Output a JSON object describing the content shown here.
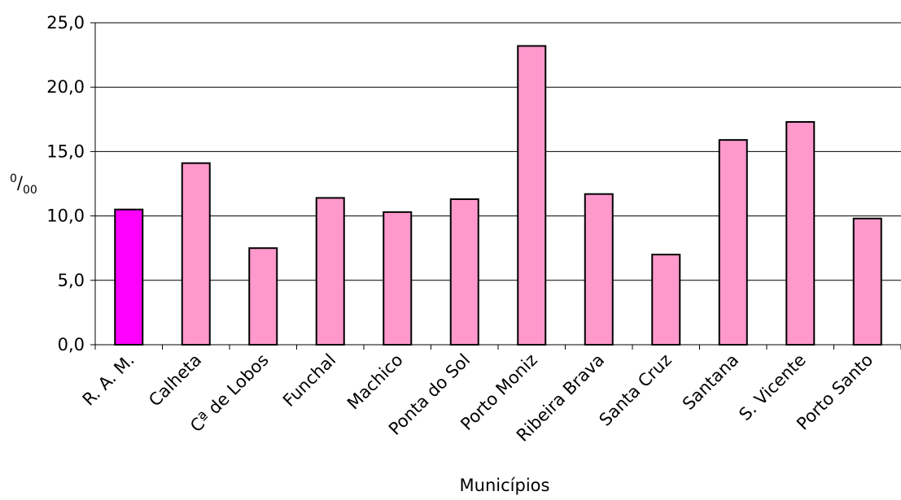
{
  "chart_data": {
    "type": "bar",
    "title": "",
    "xlabel": "Municípios",
    "ylabel": {
      "sup": "0",
      "sep": "/",
      "sub": "00"
    },
    "ylim": [
      0,
      25
    ],
    "yticks": [
      "0,0",
      "5,0",
      "10,0",
      "15,0",
      "20,0",
      "25,0"
    ],
    "grid": true,
    "categories": [
      "R. A. M.",
      "Calheta",
      "Cª de Lobos",
      "Funchal",
      "Machico",
      "Ponta do Sol",
      "Porto Moniz",
      "Ribeira Brava",
      "Santa Cruz",
      "Santana",
      "S. Vicente",
      "Porto Santo"
    ],
    "values": [
      10.5,
      14.1,
      7.5,
      11.4,
      10.3,
      11.3,
      23.2,
      11.7,
      7.0,
      15.9,
      17.3,
      9.8
    ],
    "colors": {
      "highlight": "#ff00ff",
      "bar": "#ff99cc",
      "outline": "#000000",
      "grid": "#000000"
    },
    "highlight_index": 0
  }
}
